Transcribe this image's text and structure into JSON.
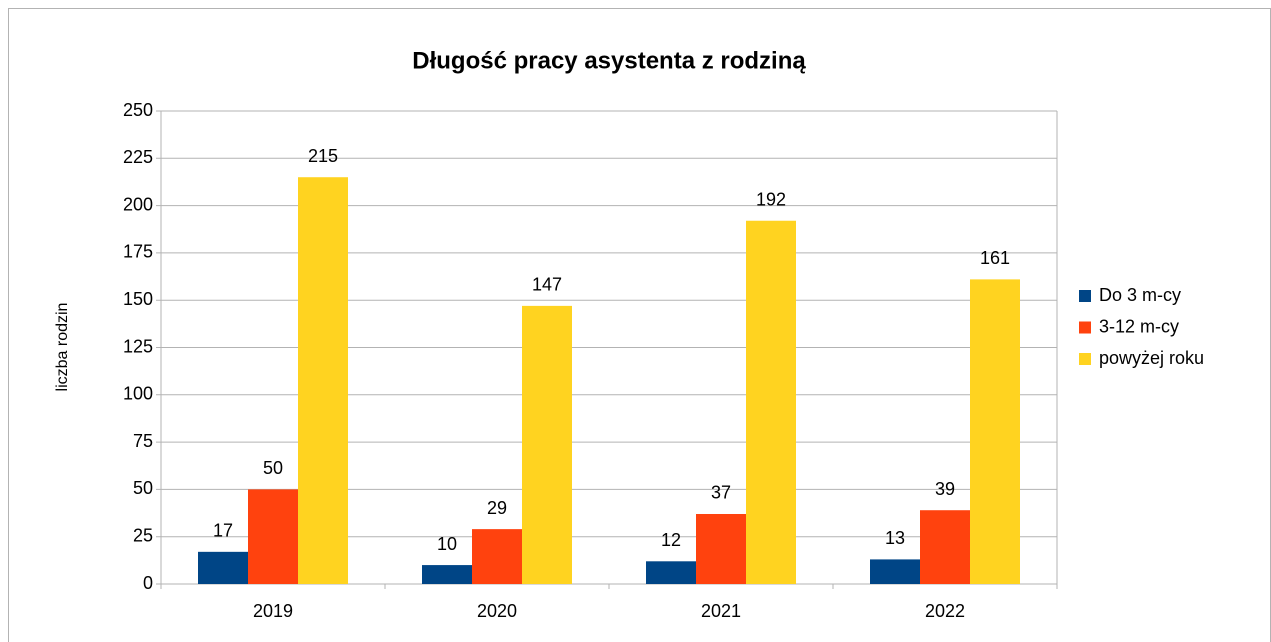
{
  "chart_data": {
    "type": "bar",
    "title": "Długość pracy asystenta z rodziną",
    "y_label": "liczba rodzin",
    "categories": [
      "2019",
      "2020",
      "2021",
      "2022"
    ],
    "series": [
      {
        "name": "Do 3 m-cy",
        "color": "#004586",
        "values": [
          17,
          10,
          12,
          13
        ]
      },
      {
        "name": "3-12 m-cy",
        "color": "#ff420e",
        "values": [
          50,
          29,
          37,
          39
        ]
      },
      {
        "name": "powyżej roku",
        "color": "#ffd320",
        "values": [
          215,
          147,
          192,
          161
        ]
      }
    ],
    "ylim": [
      0,
      250
    ],
    "yticks": [
      0,
      25,
      50,
      75,
      100,
      125,
      150,
      175,
      200,
      225,
      250
    ],
    "grid": true,
    "legend": "right"
  }
}
